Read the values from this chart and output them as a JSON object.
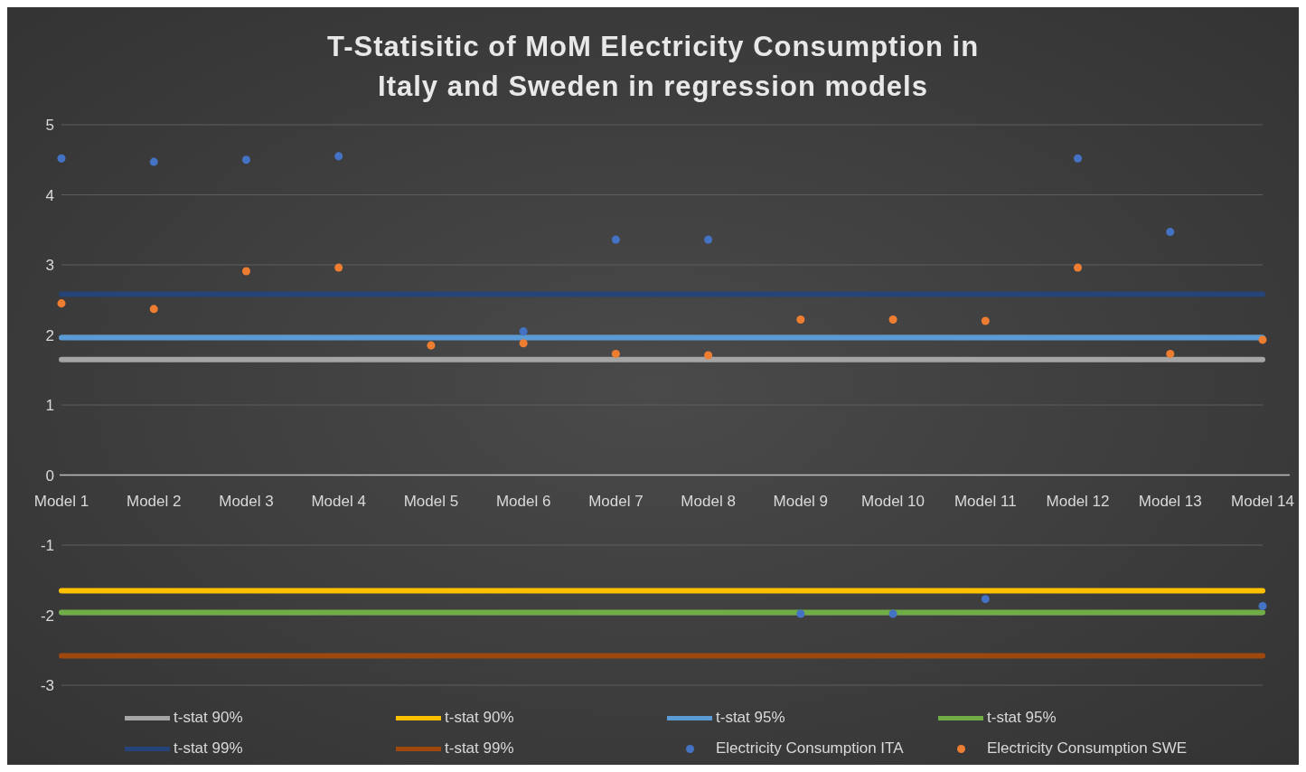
{
  "chart_data": {
    "type": "scatter",
    "title": "T-Statisitic of MoM Electricity Consumption in Italy and Sweden in regression models",
    "categories": [
      "Model 1",
      "Model 2",
      "Model 3",
      "Model 4",
      "Model 5",
      "Model 6",
      "Model 7",
      "Model 8",
      "Model 9",
      "Model 10",
      "Model 11",
      "Model 12",
      "Model 13",
      "Model 14"
    ],
    "series": [
      {
        "name": "t-stat 90%",
        "type": "line",
        "marker": "none",
        "color": "#a5a5a5",
        "values": [
          1.65,
          1.65,
          1.65,
          1.65,
          1.65,
          1.65,
          1.65,
          1.65,
          1.65,
          1.65,
          1.65,
          1.65,
          1.65,
          1.65
        ]
      },
      {
        "name": "t-stat 90%",
        "type": "line",
        "marker": "none",
        "color": "#ffc000",
        "values": [
          -1.65,
          -1.65,
          -1.65,
          -1.65,
          -1.65,
          -1.65,
          -1.65,
          -1.65,
          -1.65,
          -1.65,
          -1.65,
          -1.65,
          -1.65,
          -1.65
        ]
      },
      {
        "name": "t-stat 95%",
        "type": "line",
        "marker": "none",
        "color": "#5b9bd5",
        "values": [
          1.96,
          1.96,
          1.96,
          1.96,
          1.96,
          1.96,
          1.96,
          1.96,
          1.96,
          1.96,
          1.96,
          1.96,
          1.96,
          1.96
        ]
      },
      {
        "name": "t-stat 95%",
        "type": "line",
        "marker": "none",
        "color": "#70ad47",
        "values": [
          -1.96,
          -1.96,
          -1.96,
          -1.96,
          -1.96,
          -1.96,
          -1.96,
          -1.96,
          -1.96,
          -1.96,
          -1.96,
          -1.96,
          -1.96,
          -1.96
        ]
      },
      {
        "name": "t-stat 99%",
        "type": "line",
        "marker": "none",
        "color": "#264478",
        "values": [
          2.58,
          2.58,
          2.58,
          2.58,
          2.58,
          2.58,
          2.58,
          2.58,
          2.58,
          2.58,
          2.58,
          2.58,
          2.58,
          2.58
        ]
      },
      {
        "name": "t-stat 99%",
        "type": "line",
        "marker": "none",
        "color": "#9e480e",
        "values": [
          -2.58,
          -2.58,
          -2.58,
          -2.58,
          -2.58,
          -2.58,
          -2.58,
          -2.58,
          -2.58,
          -2.58,
          -2.58,
          -2.58,
          -2.58,
          -2.58
        ]
      },
      {
        "name": "Electricity Consumption ITA",
        "marker": "circle",
        "color": "#4472c4",
        "values": [
          4.52,
          4.47,
          4.5,
          4.55,
          null,
          2.05,
          3.36,
          3.36,
          -1.98,
          -1.98,
          -1.77,
          4.52,
          3.47,
          -1.87
        ]
      },
      {
        "name": "Electricity Consumption SWE",
        "marker": "circle",
        "color": "#ed7d31",
        "values": [
          2.45,
          2.37,
          2.91,
          2.96,
          1.85,
          1.88,
          1.73,
          1.71,
          2.22,
          2.22,
          2.2,
          2.96,
          1.73,
          1.93
        ]
      }
    ],
    "ylim": [
      -3,
      5
    ],
    "yticks": [
      -3,
      -2,
      -1,
      0,
      1,
      2,
      3,
      4,
      5
    ],
    "grid": "y",
    "legend": "bottom"
  }
}
